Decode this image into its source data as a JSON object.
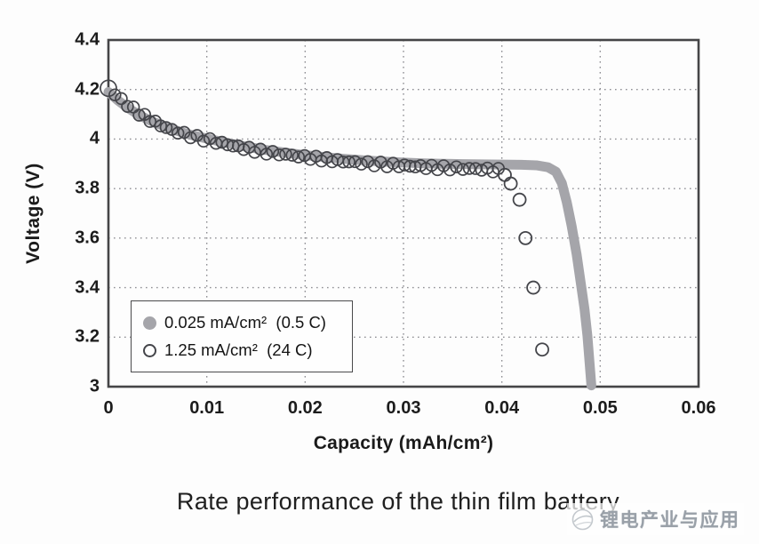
{
  "caption": "Rate performance of the thin film battery",
  "watermark": {
    "text": "锂电产业与应用",
    "logo": "swirl-globe-logo"
  },
  "colors": {
    "background": "#fdfdfd",
    "frame": "#454547",
    "grid": "#8f8f94",
    "series_fill_gray": "#a5a5aa",
    "series_open_stroke": "#44454a",
    "text": "#1b1b1b",
    "watermark_text": "#99a0a8"
  },
  "legend": {
    "items": [
      {
        "marker": "filled-circle",
        "label": "0.025 mA/cm²  (0.5 C)"
      },
      {
        "marker": "open-circle",
        "label": "1.25 mA/cm²  (24 C)"
      }
    ]
  },
  "chart_data": {
    "type": "line+scatter",
    "title": "Rate performance of the thin film battery",
    "xlabel": "Capacity (mAh/cm²)",
    "ylabel": "Voltage (V)",
    "xlim": [
      0,
      0.06
    ],
    "ylim": [
      3,
      4.4
    ],
    "grid": "dotted",
    "legend_position": "lower-left-inside",
    "x_ticks": [
      {
        "label": "0",
        "v": 0
      },
      {
        "label": "0.01",
        "v": 0.01
      },
      {
        "label": "0.02",
        "v": 0.02
      },
      {
        "label": "0.03",
        "v": 0.03
      },
      {
        "label": "0.04",
        "v": 0.04
      },
      {
        "label": "0.05",
        "v": 0.05
      },
      {
        "label": "0.06",
        "v": 0.06
      }
    ],
    "y_ticks": [
      {
        "label": "3",
        "v": 3
      },
      {
        "label": "3.2",
        "v": 3.2
      },
      {
        "label": "3.4",
        "v": 3.4
      },
      {
        "label": "3.6",
        "v": 3.6
      },
      {
        "label": "3.8",
        "v": 3.8
      },
      {
        "label": "4",
        "v": 4
      },
      {
        "label": "4.2",
        "v": 4.2
      },
      {
        "label": "4.4",
        "v": 4.4
      }
    ],
    "x_gridlines": [
      0.01,
      0.02,
      0.03,
      0.04,
      0.05
    ],
    "y_gridlines": [
      3.2,
      3.4,
      3.6,
      3.8,
      4.0,
      4.2
    ],
    "series": [
      {
        "name": "0.025 mA/cm² (0.5 C)",
        "current_density": "0.025 mA/cm²",
        "c_rate": "0.5 C",
        "render": "thick-gray-line",
        "points": [
          [
            0,
            4.19
          ],
          [
            0.001,
            4.155
          ],
          [
            0.002,
            4.125
          ],
          [
            0.003,
            4.1
          ],
          [
            0.004,
            4.079
          ],
          [
            0.005,
            4.062
          ],
          [
            0.006,
            4.047
          ],
          [
            0.007,
            4.033
          ],
          [
            0.008,
            4.021
          ],
          [
            0.009,
            4.011
          ],
          [
            0.01,
            4.002
          ],
          [
            0.012,
            3.985
          ],
          [
            0.014,
            3.969
          ],
          [
            0.016,
            3.956
          ],
          [
            0.018,
            3.945
          ],
          [
            0.02,
            3.935
          ],
          [
            0.022,
            3.927
          ],
          [
            0.024,
            3.92
          ],
          [
            0.026,
            3.914
          ],
          [
            0.028,
            3.909
          ],
          [
            0.03,
            3.905
          ],
          [
            0.032,
            3.902
          ],
          [
            0.034,
            3.9
          ],
          [
            0.036,
            3.899
          ],
          [
            0.038,
            3.898
          ],
          [
            0.04,
            3.897
          ],
          [
            0.042,
            3.896
          ],
          [
            0.0435,
            3.894
          ],
          [
            0.0447,
            3.886
          ],
          [
            0.0455,
            3.868
          ],
          [
            0.0461,
            3.822
          ],
          [
            0.0466,
            3.745
          ],
          [
            0.0471,
            3.648
          ],
          [
            0.0476,
            3.535
          ],
          [
            0.048,
            3.425
          ],
          [
            0.0484,
            3.315
          ],
          [
            0.0487,
            3.205
          ],
          [
            0.0489,
            3.105
          ],
          [
            0.0491,
            3.005
          ]
        ]
      },
      {
        "name": "1.25 mA/cm² (24 C)",
        "current_density": "1.25 mA/cm²",
        "c_rate": "24 C",
        "render": "open-circle-markers",
        "curve": [
          [
            0,
            4.205
          ],
          [
            0.001,
            4.165
          ],
          [
            0.002,
            4.132
          ],
          [
            0.003,
            4.105
          ],
          [
            0.004,
            4.082
          ],
          [
            0.005,
            4.063
          ],
          [
            0.006,
            4.046
          ],
          [
            0.007,
            4.031
          ],
          [
            0.008,
            4.018
          ],
          [
            0.009,
            4.006
          ],
          [
            0.01,
            3.996
          ],
          [
            0.012,
            3.978
          ],
          [
            0.014,
            3.962
          ],
          [
            0.016,
            3.948
          ],
          [
            0.018,
            3.937
          ],
          [
            0.02,
            3.927
          ],
          [
            0.022,
            3.918
          ],
          [
            0.024,
            3.91
          ],
          [
            0.026,
            3.903
          ],
          [
            0.028,
            3.897
          ],
          [
            0.03,
            3.892
          ],
          [
            0.032,
            3.888
          ],
          [
            0.034,
            3.884
          ],
          [
            0.036,
            3.881
          ],
          [
            0.038,
            3.878
          ],
          [
            0.0396,
            3.873
          ]
        ],
        "marker_step": 0.0006,
        "tail_points": [
          [
            0.0403,
            3.855
          ],
          [
            0.0409,
            3.82
          ],
          [
            0.0418,
            3.755
          ],
          [
            0.0424,
            3.6
          ],
          [
            0.0432,
            3.4
          ],
          [
            0.0441,
            3.15
          ]
        ]
      }
    ]
  }
}
